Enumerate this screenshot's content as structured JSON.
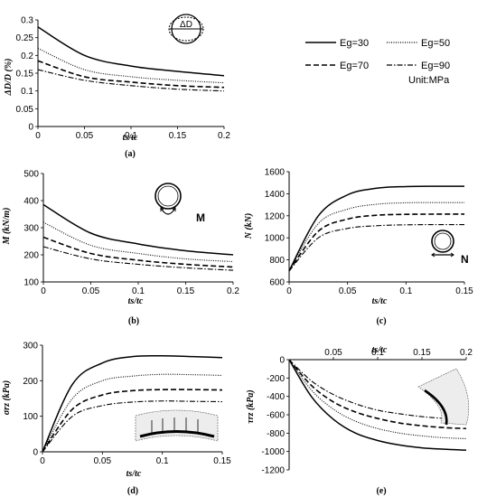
{
  "legend": {
    "entries": [
      {
        "label": "Eg=30",
        "dash": ""
      },
      {
        "label": "Eg=50",
        "dash": "1,1.5"
      },
      {
        "label": "Eg=70",
        "dash": "6,3"
      },
      {
        "label": "Eg=90",
        "dash": "6,2,1.5,2"
      }
    ],
    "unit": "Unit:MPa"
  },
  "chart_data": [
    {
      "panel": "(a)",
      "type": "line",
      "ylabel": "ΔD/D (%)",
      "xlabel": "ts/tc",
      "xlim": [
        0,
        0.2
      ],
      "ylim": [
        0,
        0.3
      ],
      "xticks": [
        "0",
        "0.05",
        "0.1",
        "0.15",
        "0.2"
      ],
      "yticks": [
        "0",
        "0.05",
        "0.1",
        "0.15",
        "0.2",
        "0.25",
        "0.3"
      ],
      "inset_label": "ΔD",
      "x": [
        0,
        0.05,
        0.1,
        0.15,
        0.2
      ],
      "series": [
        {
          "name": "Eg=30",
          "values": [
            0.28,
            0.2,
            0.17,
            0.155,
            0.143
          ]
        },
        {
          "name": "Eg=50",
          "values": [
            0.22,
            0.16,
            0.14,
            0.13,
            0.123
          ]
        },
        {
          "name": "Eg=70",
          "values": [
            0.185,
            0.14,
            0.125,
            0.115,
            0.11
          ]
        },
        {
          "name": "Eg=90",
          "values": [
            0.16,
            0.13,
            0.115,
            0.105,
            0.1
          ]
        }
      ]
    },
    {
      "panel": "(b)",
      "type": "line",
      "ylabel": "M (kN/m)",
      "xlabel": "ts/tc",
      "xlim": [
        0,
        0.2
      ],
      "ylim": [
        100,
        500
      ],
      "xticks": [
        "0",
        "0.05",
        "0.1",
        "0.15",
        "0.2"
      ],
      "yticks": [
        "100",
        "200",
        "300",
        "400",
        "500"
      ],
      "inset_label": "M",
      "x": [
        0,
        0.05,
        0.1,
        0.15,
        0.2
      ],
      "series": [
        {
          "name": "Eg=30",
          "values": [
            385,
            280,
            240,
            215,
            200
          ]
        },
        {
          "name": "Eg=50",
          "values": [
            320,
            235,
            205,
            185,
            175
          ]
        },
        {
          "name": "Eg=70",
          "values": [
            265,
            205,
            180,
            165,
            155
          ]
        },
        {
          "name": "Eg=90",
          "values": [
            230,
            185,
            165,
            152,
            143
          ]
        }
      ]
    },
    {
      "panel": "(c)",
      "type": "line",
      "ylabel": "N (kN)",
      "xlabel": "ts/tc",
      "xlim": [
        0,
        0.15
      ],
      "ylim": [
        600,
        1600
      ],
      "xticks": [
        "0",
        "0.05",
        "0.1",
        "0.15"
      ],
      "yticks": [
        "600",
        "800",
        "1000",
        "1200",
        "1400",
        "1600"
      ],
      "inset_label": "N",
      "x": [
        0,
        0.025,
        0.05,
        0.075,
        0.1,
        0.125,
        0.15
      ],
      "series": [
        {
          "name": "Eg=30",
          "values": [
            700,
            1200,
            1390,
            1450,
            1465,
            1468,
            1468
          ]
        },
        {
          "name": "Eg=50",
          "values": [
            700,
            1130,
            1260,
            1305,
            1318,
            1320,
            1320
          ]
        },
        {
          "name": "Eg=70",
          "values": [
            700,
            1060,
            1170,
            1205,
            1213,
            1215,
            1215
          ]
        },
        {
          "name": "Eg=90",
          "values": [
            700,
            1000,
            1085,
            1110,
            1118,
            1120,
            1120
          ]
        }
      ]
    },
    {
      "panel": "(d)",
      "type": "line",
      "ylabel": "σrz (kPa)",
      "xlabel": "ts/tc",
      "xlim": [
        0,
        0.15
      ],
      "ylim": [
        0,
        300
      ],
      "xticks": [
        "0",
        "0.05",
        "0.1",
        "0.15"
      ],
      "yticks": [
        "0",
        "100",
        "200",
        "300"
      ],
      "x": [
        0,
        0.025,
        0.05,
        0.075,
        0.1,
        0.125,
        0.15
      ],
      "series": [
        {
          "name": "Eg=30",
          "values": [
            0,
            190,
            250,
            268,
            270,
            268,
            265
          ]
        },
        {
          "name": "Eg=50",
          "values": [
            0,
            150,
            200,
            213,
            218,
            217,
            215
          ]
        },
        {
          "name": "Eg=70",
          "values": [
            0,
            120,
            160,
            172,
            175,
            175,
            174
          ]
        },
        {
          "name": "Eg=90",
          "values": [
            0,
            100,
            130,
            140,
            143,
            142,
            141
          ]
        }
      ]
    },
    {
      "panel": "(e)",
      "type": "line",
      "ylabel": "τrz (kPa)",
      "xlabel": "ts/tc",
      "xlim": [
        0,
        0.2
      ],
      "ylim": [
        -1200,
        0
      ],
      "xticks": [
        "0.05",
        "0.1",
        "0.15",
        "0.2"
      ],
      "yticks": [
        "0",
        "-200",
        "-400",
        "-600",
        "-800",
        "-1000",
        "-1200"
      ],
      "x": [
        0,
        0.025,
        0.05,
        0.075,
        0.1,
        0.125,
        0.15,
        0.175,
        0.2
      ],
      "series": [
        {
          "name": "Eg=30",
          "values": [
            0,
            -400,
            -650,
            -800,
            -880,
            -930,
            -960,
            -975,
            -985
          ]
        },
        {
          "name": "Eg=50",
          "values": [
            0,
            -330,
            -540,
            -670,
            -750,
            -800,
            -830,
            -850,
            -860
          ]
        },
        {
          "name": "Eg=70",
          "values": [
            0,
            -280,
            -460,
            -570,
            -640,
            -690,
            -720,
            -740,
            -750
          ]
        },
        {
          "name": "Eg=90",
          "values": [
            0,
            -230,
            -380,
            -480,
            -550,
            -590,
            -620,
            -640,
            -650
          ]
        }
      ]
    }
  ]
}
